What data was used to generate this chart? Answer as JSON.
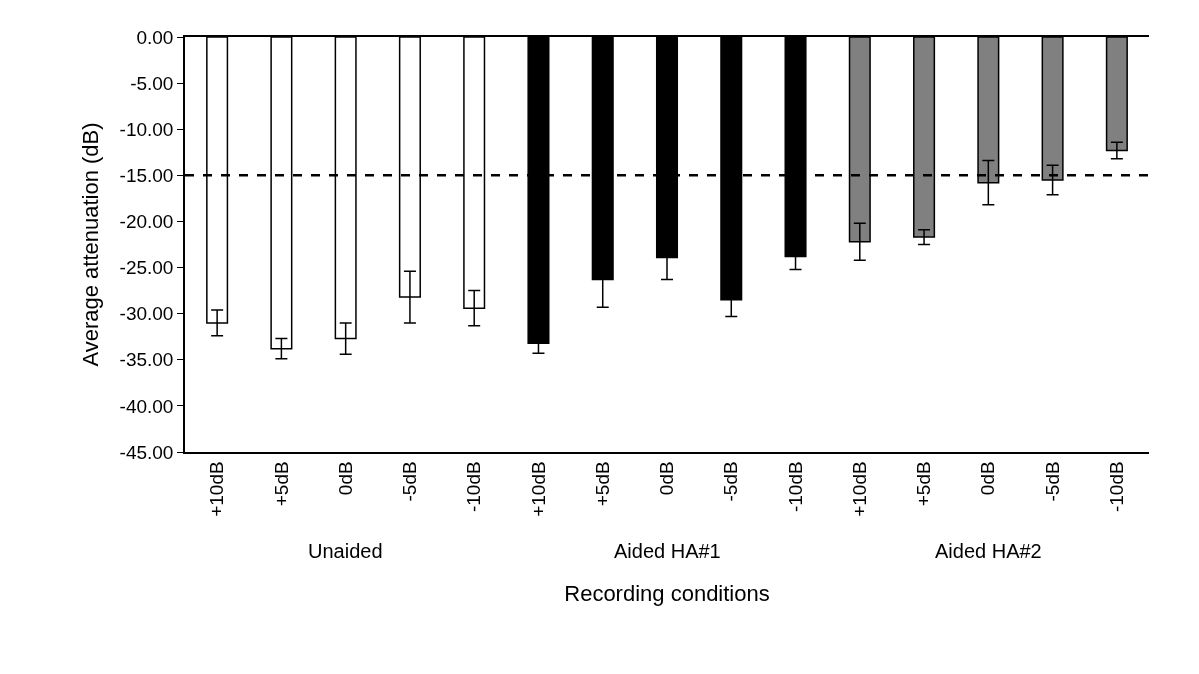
{
  "chart_data": {
    "type": "bar",
    "xlabel": "Recording conditions",
    "ylabel": "Average attenuation (dB)",
    "categories": [
      "+10dB",
      "+5dB",
      "0dB",
      "-5dB",
      "-10dB",
      "+10dB",
      "+5dB",
      "0dB",
      "-5dB",
      "-10dB",
      "+10dB",
      "+5dB",
      "0dB",
      "-5dB",
      "-10dB"
    ],
    "values": [
      -31.0,
      -33.8,
      -32.7,
      -28.2,
      -29.4,
      -33.2,
      -26.3,
      -23.9,
      -28.5,
      -23.8,
      -22.2,
      -21.7,
      -15.8,
      -15.5,
      -12.3
    ],
    "errors": [
      1.4,
      1.1,
      1.7,
      2.8,
      1.9,
      1.1,
      3.0,
      2.4,
      1.8,
      1.4,
      2.0,
      0.8,
      2.4,
      1.6,
      0.9
    ],
    "colors": [
      "#ffffff",
      "#ffffff",
      "#ffffff",
      "#ffffff",
      "#ffffff",
      "#000000",
      "#000000",
      "#000000",
      "#000000",
      "#000000",
      "#808080",
      "#808080",
      "#808080",
      "#808080",
      "#808080"
    ],
    "ylim": [
      -45,
      0
    ],
    "yticks": [
      {
        "value": 0,
        "label": "0.00"
      },
      {
        "value": -5,
        "label": "-5.00"
      },
      {
        "value": -10,
        "label": "-10.00"
      },
      {
        "value": -15,
        "label": "-15.00"
      },
      {
        "value": -20,
        "label": "-20.00"
      },
      {
        "value": -25,
        "label": "-25.00"
      },
      {
        "value": -30,
        "label": "-30.00"
      },
      {
        "value": -35,
        "label": "-35.00"
      },
      {
        "value": -40,
        "label": "-40.00"
      },
      {
        "value": -45,
        "label": "-45.00"
      }
    ],
    "ref_lines": [
      {
        "axis": "y",
        "value": -15,
        "line_style": "dashed",
        "color": "#000000"
      }
    ],
    "annotations": [
      "Unaided",
      "Aided HA#1",
      "Aided HA#2"
    ],
    "legend": false
  }
}
